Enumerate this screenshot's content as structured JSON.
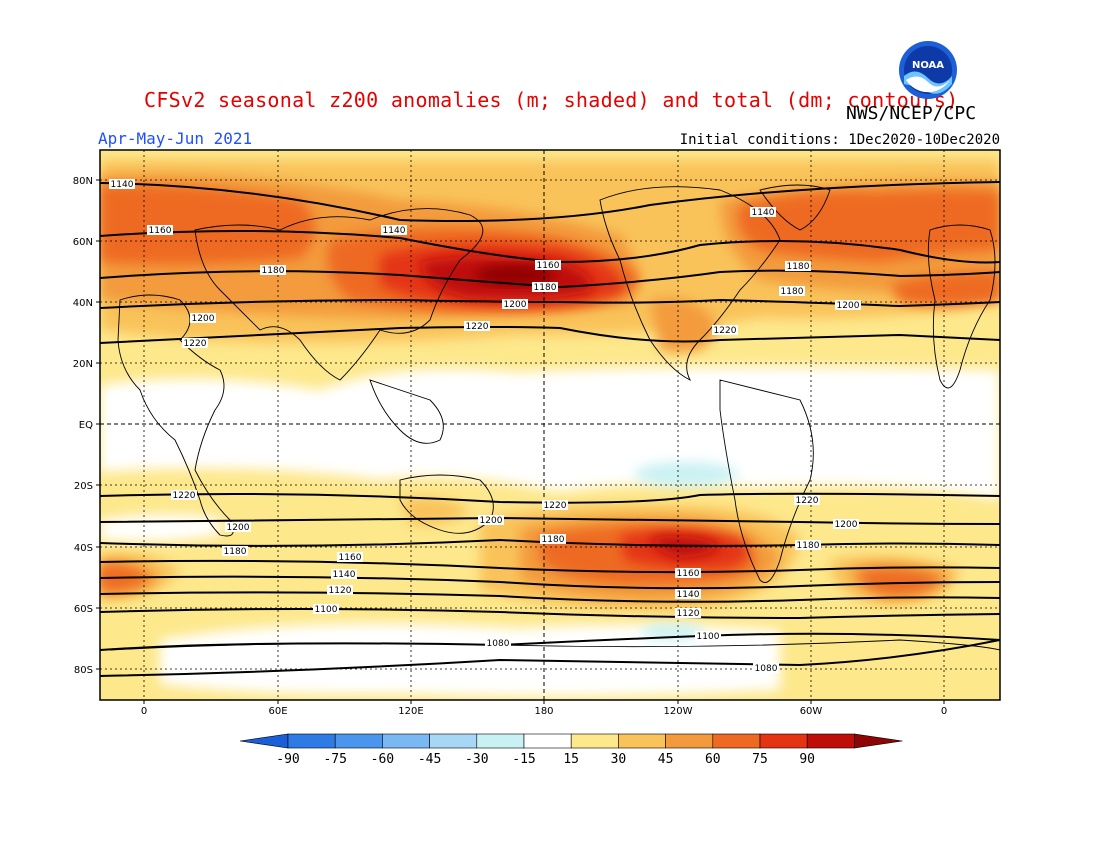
{
  "header": {
    "title": "CFSv2 seasonal z200 anomalies (m; shaded) and total (dm; contours)",
    "org": "NWS/NCEP/CPC",
    "period": "Apr-May-Jun 2021",
    "initial_conditions": "Initial conditions: 1Dec2020-10Dec2020",
    "logo_text": "NOAA"
  },
  "map": {
    "lat_ticks": [
      "80N",
      "60N",
      "40N",
      "20N",
      "EQ",
      "20S",
      "40S",
      "60S",
      "80S"
    ],
    "lon_ticks": [
      "0",
      "60E",
      "120E",
      "180",
      "120W",
      "60W",
      "0"
    ],
    "contour_values": [
      1080,
      1100,
      1120,
      1140,
      1160,
      1180,
      1200,
      1220
    ]
  },
  "colorbar": {
    "levels": [
      "-90",
      "-75",
      "-60",
      "-45",
      "-30",
      "-15",
      "15",
      "30",
      "45",
      "60",
      "75",
      "90"
    ],
    "colors": [
      "#1a5fd8",
      "#2f7be6",
      "#4a96ee",
      "#79b8f2",
      "#a8d6f5",
      "#c9f1f3",
      "#ffffff",
      "#fde88c",
      "#f9c35a",
      "#f39b3c",
      "#ee6a22",
      "#e43413",
      "#bf0e08",
      "#8e0505"
    ]
  }
}
